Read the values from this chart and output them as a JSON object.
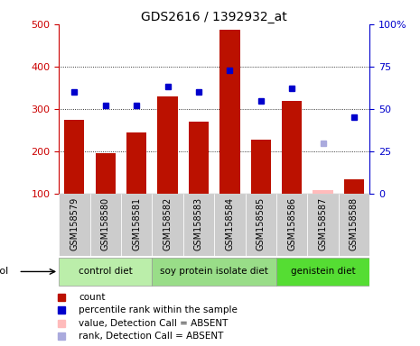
{
  "title": "GDS2616 / 1392932_at",
  "samples": [
    "GSM158579",
    "GSM158580",
    "GSM158581",
    "GSM158582",
    "GSM158583",
    "GSM158584",
    "GSM158585",
    "GSM158586",
    "GSM158587",
    "GSM158588"
  ],
  "bar_values": [
    275,
    195,
    245,
    330,
    270,
    487,
    228,
    320,
    108,
    135
  ],
  "bar_absent": [
    false,
    false,
    false,
    false,
    false,
    false,
    false,
    false,
    true,
    false
  ],
  "rank_values": [
    60,
    52,
    52,
    63,
    60,
    73,
    55,
    62,
    30,
    45
  ],
  "rank_absent": [
    false,
    false,
    false,
    false,
    false,
    false,
    false,
    false,
    true,
    false
  ],
  "ylim_left": [
    100,
    500
  ],
  "ylim_right": [
    0,
    100
  ],
  "yticks_left": [
    100,
    200,
    300,
    400,
    500
  ],
  "yticks_right": [
    0,
    25,
    50,
    75,
    100
  ],
  "ytick_labels_right": [
    "0",
    "25",
    "50",
    "75",
    "100%"
  ],
  "groups": [
    {
      "label": "control diet",
      "start": 0,
      "end": 3
    },
    {
      "label": "soy protein isolate diet",
      "start": 3,
      "end": 7
    },
    {
      "label": "genistein diet",
      "start": 7,
      "end": 10
    }
  ],
  "group_colors": [
    "#bbeeaa",
    "#99dd88",
    "#55dd33"
  ],
  "bar_color": "#bb1100",
  "bar_absent_color": "#ffbbbb",
  "rank_color": "#0000cc",
  "rank_absent_color": "#aaaadd",
  "col_bg_color": "#cccccc",
  "plot_bg": "#ffffff",
  "legend_items": [
    {
      "label": "count",
      "color": "#bb1100"
    },
    {
      "label": "percentile rank within the sample",
      "color": "#0000cc"
    },
    {
      "label": "value, Detection Call = ABSENT",
      "color": "#ffbbbb"
    },
    {
      "label": "rank, Detection Call = ABSENT",
      "color": "#aaaadd"
    }
  ],
  "figsize": [
    4.65,
    3.84
  ],
  "dpi": 100
}
